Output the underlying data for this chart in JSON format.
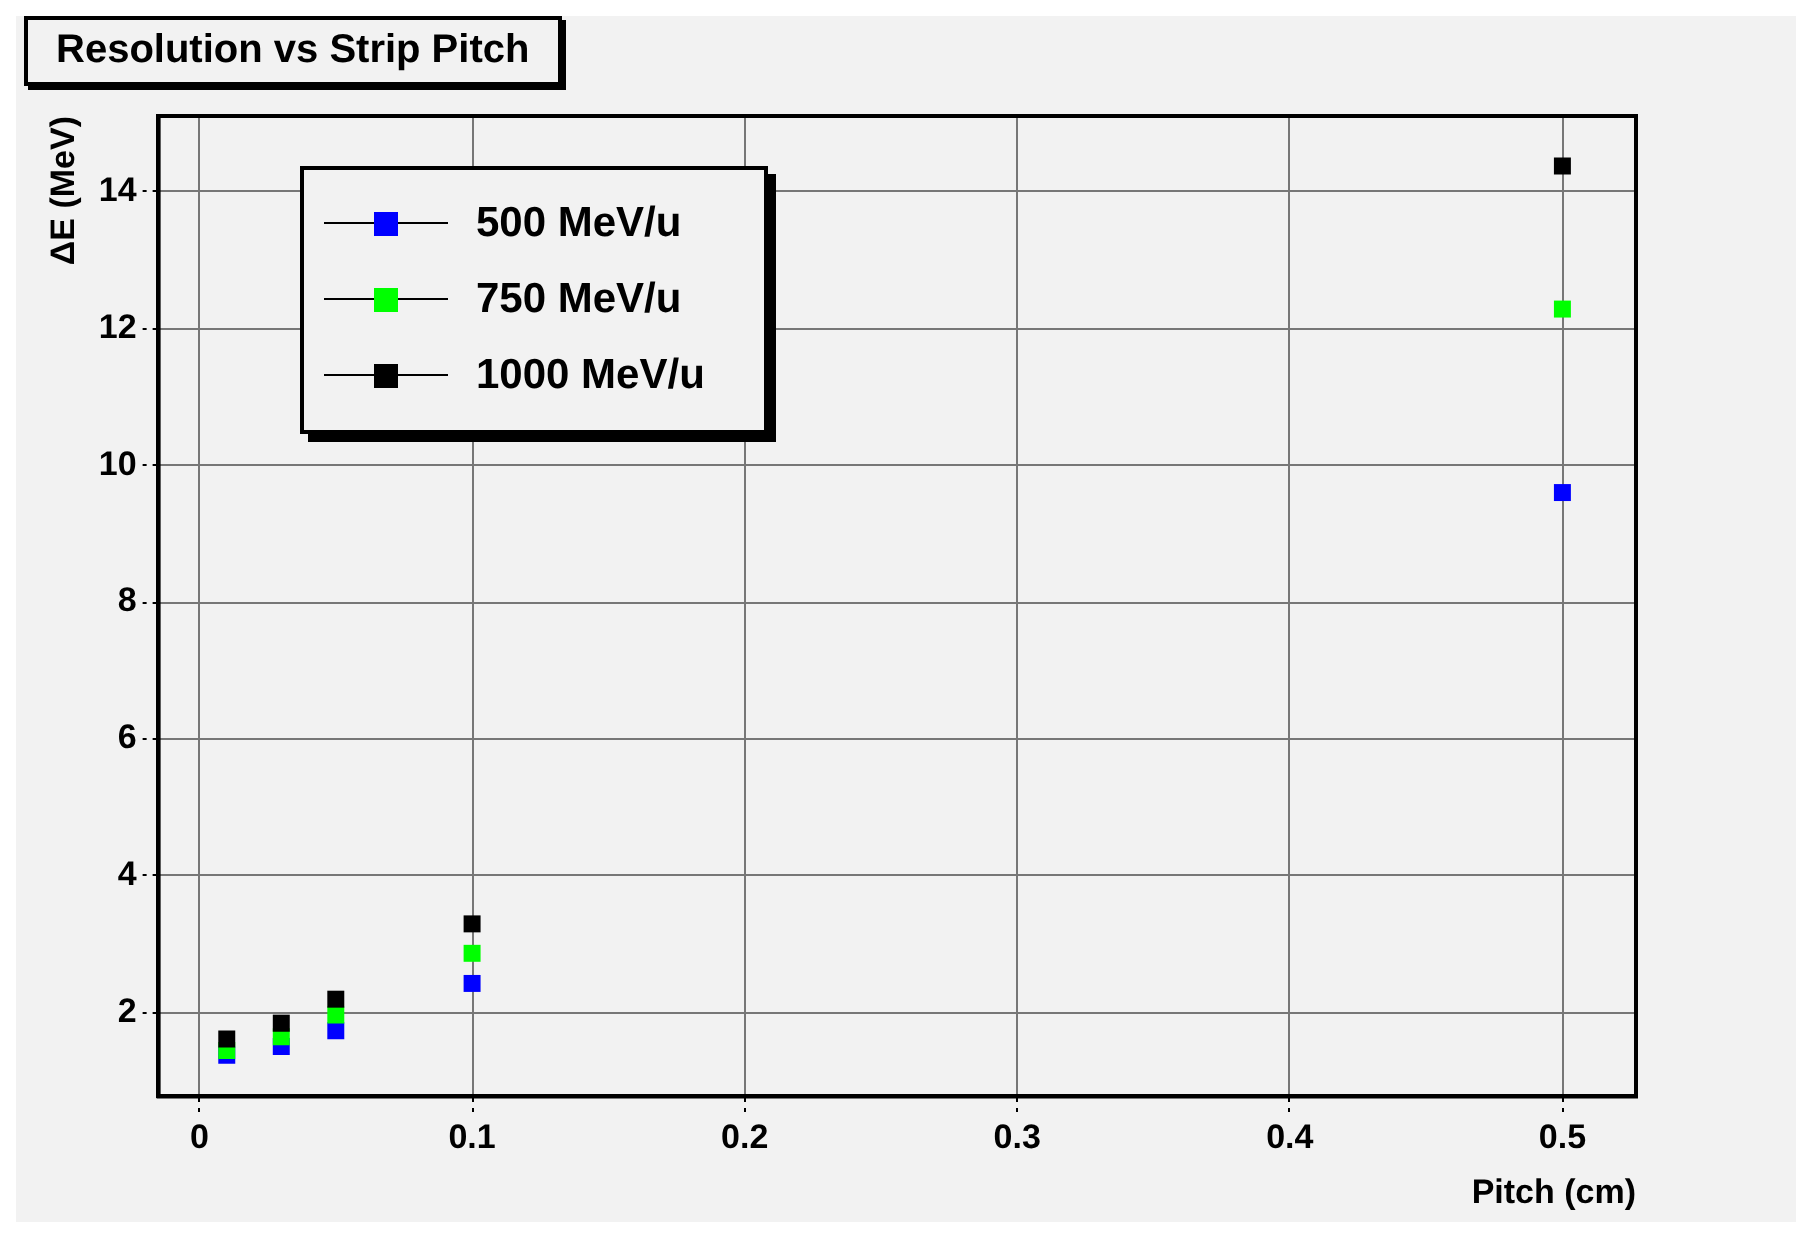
{
  "chart_data": {
    "type": "scatter",
    "title": "Resolution vs Strip Pitch",
    "xlabel": "Pitch (cm)",
    "ylabel": "ΔE (MeV)",
    "x": [
      0.01,
      0.03,
      0.05,
      0.1,
      0.5
    ],
    "series": [
      {
        "name": "500 MeV/u",
        "color": "#0000ff",
        "values": [
          1.38,
          1.51,
          1.74,
          2.43,
          9.6
        ]
      },
      {
        "name": "750 MeV/u",
        "color": "#00ff00",
        "values": [
          1.45,
          1.65,
          1.97,
          2.87,
          12.28
        ]
      },
      {
        "name": "1000 MeV/u",
        "color": "#000000",
        "values": [
          1.62,
          1.85,
          2.2,
          3.3,
          14.37
        ]
      }
    ],
    "xlim": [
      -0.015,
      0.527
    ],
    "xticks": [
      0,
      0.1,
      0.2,
      0.3,
      0.4,
      0.5
    ],
    "ylim": [
      0.78,
      15.1
    ],
    "yticks": [
      2,
      4,
      6,
      8,
      10,
      12,
      14
    ],
    "grid": true,
    "legend": "top left",
    "marker": "square"
  }
}
